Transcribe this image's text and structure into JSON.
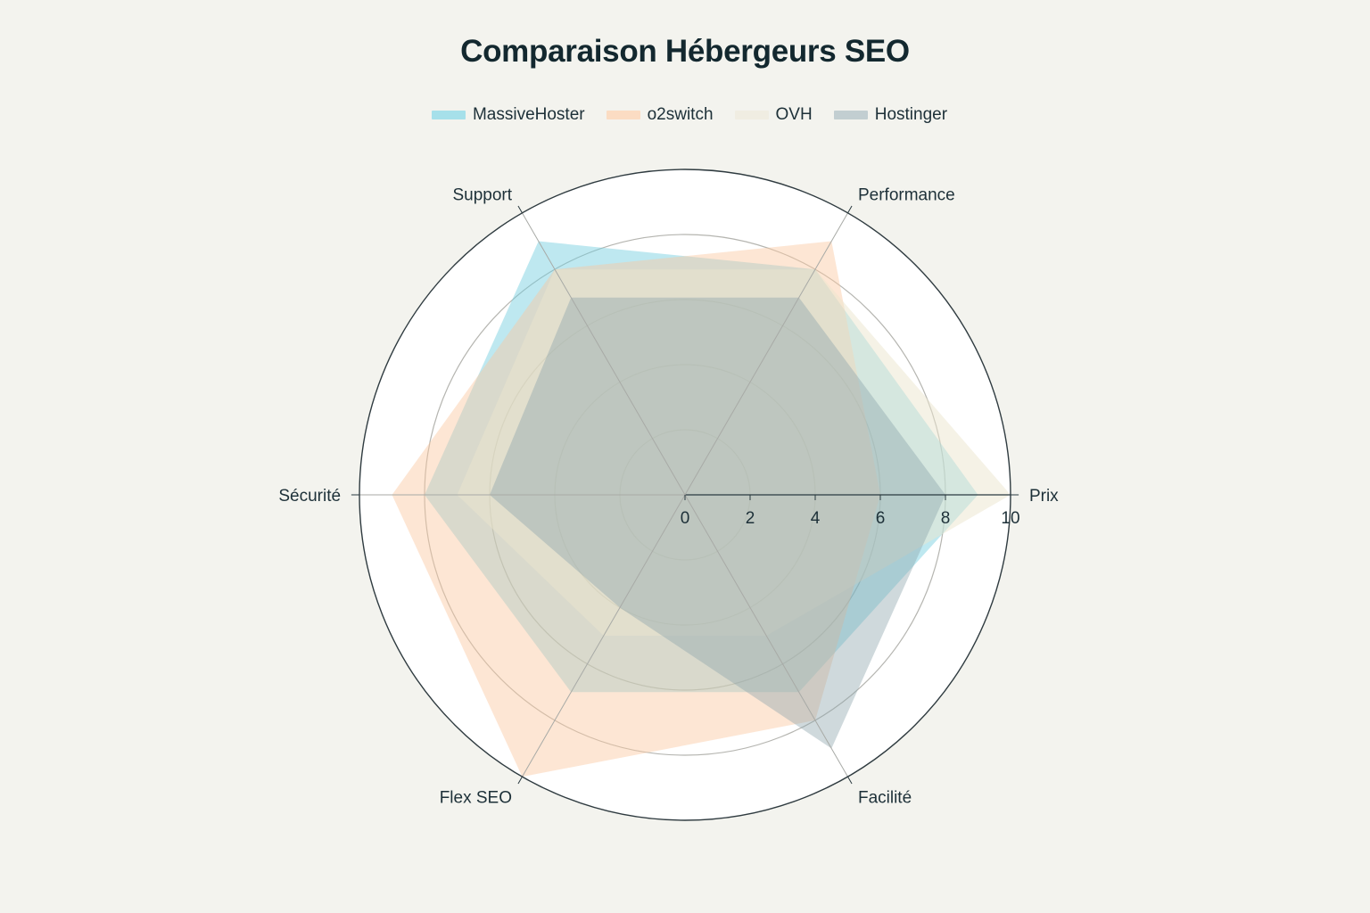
{
  "title": "Comparaison Hébergeurs SEO",
  "legend": [
    {
      "label": "MassiveHoster",
      "color": "#a6e0ea"
    },
    {
      "label": "o2switch",
      "color": "#fbdcc3"
    },
    {
      "label": "OVH",
      "color": "#f4f0e4"
    },
    {
      "label": "Hostinger",
      "color": "#c2ced1"
    }
  ],
  "chart_data": {
    "type": "radar",
    "title": "Comparaison Hébergeurs SEO",
    "categories": [
      "Prix",
      "Performance",
      "Support",
      "Sécurité",
      "Flex SEO",
      "Facilité"
    ],
    "radial_range": [
      0,
      10
    ],
    "radial_ticks": [
      "0",
      "2",
      "4",
      "6",
      "8",
      "10"
    ],
    "legend_position": "top",
    "series": [
      {
        "name": "MassiveHoster",
        "values": [
          9,
          8,
          9,
          8,
          7,
          7
        ],
        "color": "#5cc5d8"
      },
      {
        "name": "o2switch",
        "values": [
          6,
          9,
          8,
          9,
          10,
          8
        ],
        "color": "#f8c9a3"
      },
      {
        "name": "OVH",
        "values": [
          10,
          8,
          8,
          7,
          5,
          5
        ],
        "color": "#ece6d2"
      },
      {
        "name": "Hostinger",
        "values": [
          8,
          7,
          7,
          6,
          4,
          9
        ],
        "color": "#8ea5ad"
      }
    ]
  }
}
